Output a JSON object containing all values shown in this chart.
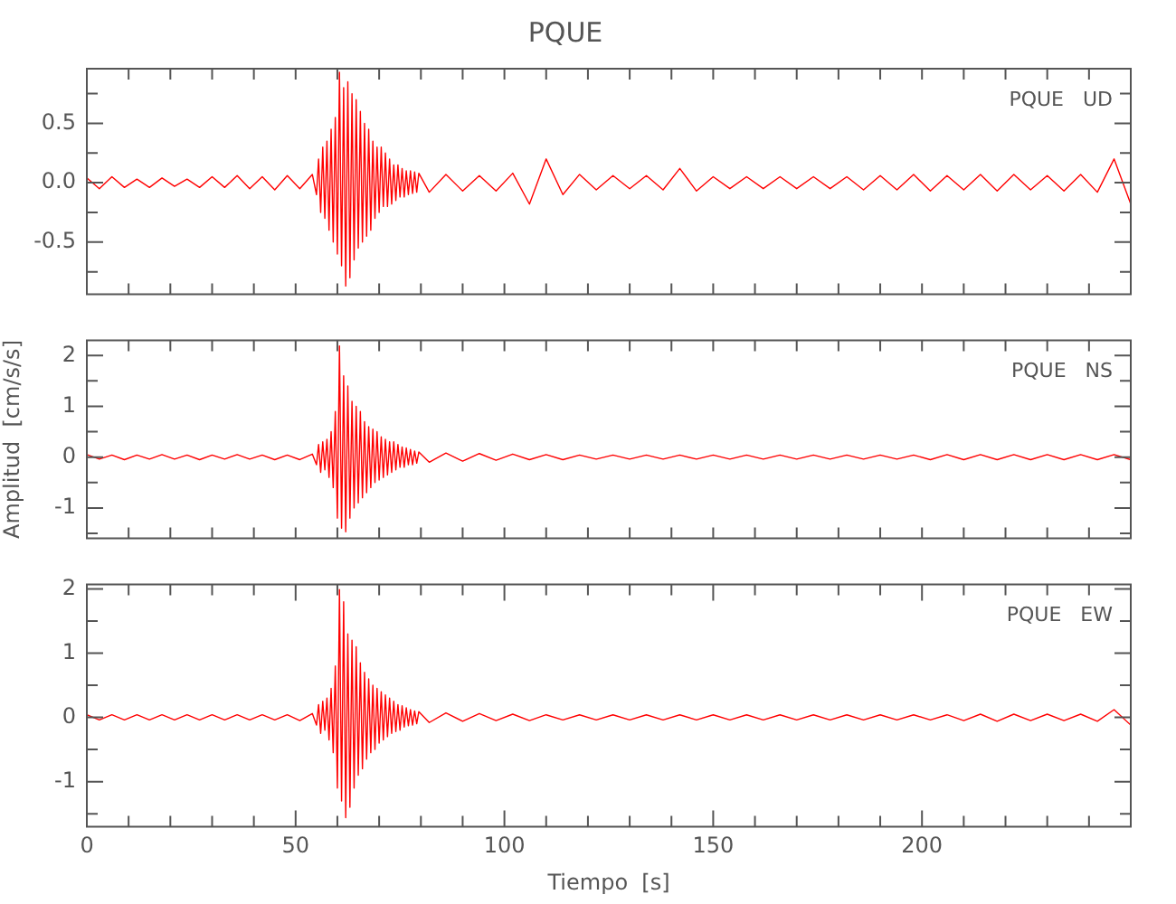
{
  "chart_data": [
    {
      "type": "line",
      "title": "PQUE",
      "annotations": [
        "PQUE   UD"
      ],
      "tick_labels": "y",
      "x": [
        0,
        3,
        6,
        9,
        12,
        15,
        18,
        21,
        24,
        27,
        30,
        33,
        36,
        39,
        42,
        45,
        48,
        51,
        54,
        55,
        55.5,
        56,
        56.5,
        57,
        57.5,
        58,
        58.5,
        59,
        59.5,
        60,
        60.5,
        61,
        61.5,
        62,
        62.5,
        63,
        63.5,
        64,
        64.5,
        65,
        65.5,
        66,
        66.5,
        67,
        67.5,
        68,
        68.5,
        69,
        69.5,
        70,
        70.5,
        71,
        71.5,
        72,
        72.5,
        73,
        73.5,
        74,
        74.5,
        75,
        75.5,
        76,
        76.5,
        77,
        77.5,
        78,
        78.5,
        79,
        79.5,
        82,
        86,
        90,
        94,
        98,
        102,
        106,
        110,
        114,
        118,
        122,
        126,
        130,
        134,
        138,
        142,
        146,
        150,
        154,
        158,
        162,
        166,
        170,
        174,
        178,
        182,
        186,
        190,
        194,
        198,
        202,
        206,
        210,
        214,
        218,
        222,
        226,
        230,
        234,
        238,
        242,
        246,
        250
      ],
      "series": [
        {
          "color": "#ff0000",
          "values": [
            0.04,
            -0.05,
            0.05,
            -0.04,
            0.03,
            -0.04,
            0.04,
            -0.03,
            0.03,
            -0.04,
            0.05,
            -0.04,
            0.06,
            -0.05,
            0.05,
            -0.06,
            0.06,
            -0.05,
            0.07,
            -0.1,
            0.2,
            -0.25,
            0.3,
            -0.3,
            0.35,
            -0.4,
            0.45,
            -0.5,
            0.55,
            -0.6,
            0.93,
            -0.7,
            0.8,
            -0.87,
            0.85,
            -0.8,
            0.75,
            -0.65,
            0.7,
            -0.55,
            0.6,
            -0.5,
            0.5,
            -0.45,
            0.45,
            -0.4,
            0.35,
            -0.3,
            0.3,
            -0.25,
            0.3,
            -0.2,
            0.25,
            -0.2,
            0.2,
            -0.18,
            0.15,
            -0.15,
            0.15,
            -0.12,
            0.12,
            -0.12,
            0.1,
            -0.1,
            0.1,
            -0.09,
            0.09,
            -0.08,
            0.08,
            -0.08,
            0.07,
            -0.07,
            0.06,
            -0.07,
            0.08,
            -0.18,
            0.2,
            -0.1,
            0.07,
            -0.06,
            0.06,
            -0.05,
            0.06,
            -0.06,
            0.12,
            -0.07,
            0.05,
            -0.05,
            0.05,
            -0.05,
            0.05,
            -0.05,
            0.05,
            -0.05,
            0.05,
            -0.06,
            0.06,
            -0.06,
            0.07,
            -0.07,
            0.06,
            -0.06,
            0.07,
            -0.07,
            0.07,
            -0.06,
            0.06,
            -0.07,
            0.07,
            -0.08,
            0.2,
            -0.18
          ]
        }
      ],
      "xlim": [
        0,
        250
      ],
      "xticks": [
        {
          "value": 0,
          "label": null
        },
        {
          "value": 10,
          "label": null
        },
        {
          "value": 20,
          "label": null
        },
        {
          "value": 30,
          "label": null
        },
        {
          "value": 40,
          "label": null
        },
        {
          "value": 50,
          "label": null
        },
        {
          "value": 60,
          "label": null
        },
        {
          "value": 70,
          "label": null
        },
        {
          "value": 80,
          "label": null
        },
        {
          "value": 90,
          "label": null
        },
        {
          "value": 100,
          "label": null
        },
        {
          "value": 110,
          "label": null
        },
        {
          "value": 120,
          "label": null
        },
        {
          "value": 130,
          "label": null
        },
        {
          "value": 140,
          "label": null
        },
        {
          "value": 150,
          "label": null
        },
        {
          "value": 160,
          "label": null
        },
        {
          "value": 170,
          "label": null
        },
        {
          "value": 180,
          "label": null
        },
        {
          "value": 190,
          "label": null
        },
        {
          "value": 200,
          "label": null
        },
        {
          "value": 210,
          "label": null
        },
        {
          "value": 220,
          "label": null
        },
        {
          "value": 230,
          "label": null
        },
        {
          "value": 240,
          "label": null
        }
      ],
      "ylim": [
        -0.94,
        0.96
      ],
      "yticks": [
        {
          "value": -0.75,
          "label": null
        },
        {
          "value": -0.5,
          "label": "-0.5"
        },
        {
          "value": -0.25,
          "label": null
        },
        {
          "value": 0,
          "label": "0.0"
        },
        {
          "value": 0.25,
          "label": null
        },
        {
          "value": 0.5,
          "label": "0.5"
        },
        {
          "value": 0.75,
          "label": null
        }
      ]
    },
    {
      "type": "line",
      "ylabel": "Amplitud  [cm/s/s]",
      "annotations": [
        "PQUE   NS"
      ],
      "tick_labels": "y",
      "x": [
        0,
        3,
        6,
        9,
        12,
        15,
        18,
        21,
        24,
        27,
        30,
        33,
        36,
        39,
        42,
        45,
        48,
        51,
        54,
        55,
        55.5,
        56,
        56.5,
        57,
        57.5,
        58,
        58.5,
        59,
        59.5,
        60,
        60.5,
        61,
        61.5,
        62,
        62.5,
        63,
        63.5,
        64,
        64.5,
        65,
        65.5,
        66,
        66.5,
        67,
        67.5,
        68,
        68.5,
        69,
        69.5,
        70,
        70.5,
        71,
        71.5,
        72,
        72.5,
        73,
        73.5,
        74,
        74.5,
        75,
        75.5,
        76,
        76.5,
        77,
        77.5,
        78,
        78.5,
        79,
        79.5,
        82,
        86,
        90,
        94,
        98,
        102,
        106,
        110,
        114,
        118,
        122,
        126,
        130,
        134,
        138,
        142,
        146,
        150,
        154,
        158,
        162,
        166,
        170,
        174,
        178,
        182,
        186,
        190,
        194,
        198,
        202,
        206,
        210,
        214,
        218,
        222,
        226,
        230,
        234,
        238,
        242,
        246,
        250
      ],
      "series": [
        {
          "color": "#ff0000",
          "values": [
            0.05,
            -0.04,
            0.04,
            -0.05,
            0.04,
            -0.04,
            0.05,
            -0.04,
            0.04,
            -0.05,
            0.04,
            -0.04,
            0.05,
            -0.04,
            0.04,
            -0.05,
            0.04,
            -0.05,
            0.06,
            -0.15,
            0.25,
            -0.3,
            0.3,
            -0.25,
            0.35,
            -0.4,
            0.5,
            -0.6,
            0.9,
            -1.2,
            2.19,
            -1.4,
            1.6,
            -1.47,
            1.4,
            -1.2,
            1.1,
            -1,
            1,
            -0.9,
            0.9,
            -0.8,
            0.7,
            -0.7,
            0.6,
            -0.6,
            0.55,
            -0.5,
            0.5,
            -0.45,
            0.4,
            -0.4,
            0.35,
            -0.35,
            0.3,
            -0.3,
            0.3,
            -0.25,
            0.25,
            -0.2,
            0.2,
            -0.2,
            0.18,
            -0.15,
            0.15,
            -0.15,
            0.12,
            -0.12,
            0.1,
            -0.1,
            0.08,
            -0.08,
            0.07,
            -0.06,
            0.06,
            -0.05,
            0.05,
            -0.05,
            0.04,
            -0.04,
            0.04,
            -0.04,
            0.04,
            -0.04,
            0.04,
            -0.04,
            0.04,
            -0.04,
            0.04,
            -0.04,
            0.04,
            -0.04,
            0.04,
            -0.04,
            0.04,
            -0.04,
            0.04,
            -0.04,
            0.04,
            -0.05,
            0.05,
            -0.05,
            0.05,
            -0.05,
            0.05,
            -0.05,
            0.05,
            -0.05,
            0.05,
            -0.05,
            0.05,
            -0.05
          ]
        }
      ],
      "xlim": [
        0,
        250
      ],
      "xticks": [
        {
          "value": 0,
          "label": null
        },
        {
          "value": 10,
          "label": null
        },
        {
          "value": 20,
          "label": null
        },
        {
          "value": 30,
          "label": null
        },
        {
          "value": 40,
          "label": null
        },
        {
          "value": 50,
          "label": null
        },
        {
          "value": 60,
          "label": null
        },
        {
          "value": 70,
          "label": null
        },
        {
          "value": 80,
          "label": null
        },
        {
          "value": 90,
          "label": null
        },
        {
          "value": 100,
          "label": null
        },
        {
          "value": 110,
          "label": null
        },
        {
          "value": 120,
          "label": null
        },
        {
          "value": 130,
          "label": null
        },
        {
          "value": 140,
          "label": null
        },
        {
          "value": 150,
          "label": null
        },
        {
          "value": 160,
          "label": null
        },
        {
          "value": 170,
          "label": null
        },
        {
          "value": 180,
          "label": null
        },
        {
          "value": 190,
          "label": null
        },
        {
          "value": 200,
          "label": null
        },
        {
          "value": 210,
          "label": null
        },
        {
          "value": 220,
          "label": null
        },
        {
          "value": 230,
          "label": null
        },
        {
          "value": 240,
          "label": null
        }
      ],
      "ylim": [
        -1.6,
        2.3
      ],
      "yticks": [
        {
          "value": -1.5,
          "label": null
        },
        {
          "value": -1,
          "label": "-1"
        },
        {
          "value": -0.5,
          "label": null
        },
        0,
        {
          "value": 0.5,
          "label": null
        },
        1,
        {
          "value": 1.5,
          "label": null
        },
        2
      ]
    },
    {
      "type": "line",
      "xlabel": "Tiempo  [s]",
      "annotations": [
        "PQUE   EW"
      ],
      "x": [
        0,
        3,
        6,
        9,
        12,
        15,
        18,
        21,
        24,
        27,
        30,
        33,
        36,
        39,
        42,
        45,
        48,
        51,
        54,
        55,
        55.5,
        56,
        56.5,
        57,
        57.5,
        58,
        58.5,
        59,
        59.5,
        60,
        60.5,
        61,
        61.5,
        62,
        62.5,
        63,
        63.5,
        64,
        64.5,
        65,
        65.5,
        66,
        66.5,
        67,
        67.5,
        68,
        68.5,
        69,
        69.5,
        70,
        70.5,
        71,
        71.5,
        72,
        72.5,
        73,
        73.5,
        74,
        74.5,
        75,
        75.5,
        76,
        76.5,
        77,
        77.5,
        78,
        78.5,
        79,
        79.5,
        82,
        86,
        90,
        94,
        98,
        102,
        106,
        110,
        114,
        118,
        122,
        126,
        130,
        134,
        138,
        142,
        146,
        150,
        154,
        158,
        162,
        166,
        170,
        174,
        178,
        182,
        186,
        190,
        194,
        198,
        202,
        206,
        210,
        214,
        218,
        222,
        226,
        230,
        234,
        238,
        242,
        246,
        250
      ],
      "series": [
        {
          "color": "#ff0000",
          "values": [
            0.04,
            -0.04,
            0.04,
            -0.04,
            0.04,
            -0.04,
            0.04,
            -0.04,
            0.04,
            -0.04,
            0.04,
            -0.04,
            0.04,
            -0.04,
            0.04,
            -0.04,
            0.04,
            -0.05,
            0.06,
            -0.12,
            0.2,
            -0.25,
            0.25,
            -0.2,
            0.3,
            -0.35,
            0.45,
            -0.55,
            0.8,
            -1.1,
            1.99,
            -1.3,
            1.8,
            -1.56,
            1.3,
            -1.4,
            1.2,
            -1.1,
            1.1,
            -0.9,
            0.85,
            -0.8,
            0.7,
            -0.65,
            0.6,
            -0.55,
            0.5,
            -0.5,
            0.45,
            -0.4,
            0.4,
            -0.35,
            0.35,
            -0.3,
            0.3,
            -0.25,
            0.25,
            -0.22,
            0.2,
            -0.2,
            0.18,
            -0.15,
            0.15,
            -0.13,
            0.12,
            -0.12,
            0.1,
            -0.1,
            0.09,
            -0.08,
            0.07,
            -0.06,
            0.06,
            -0.05,
            0.05,
            -0.05,
            0.04,
            -0.04,
            0.04,
            -0.04,
            0.04,
            -0.04,
            0.04,
            -0.04,
            0.04,
            -0.04,
            0.04,
            -0.04,
            0.04,
            -0.04,
            0.04,
            -0.04,
            0.04,
            -0.04,
            0.04,
            -0.04,
            0.04,
            -0.04,
            0.04,
            -0.04,
            0.04,
            -0.05,
            0.05,
            -0.06,
            0.05,
            -0.05,
            0.05,
            -0.05,
            0.05,
            -0.06,
            0.12,
            -0.12
          ]
        }
      ],
      "xlim": [
        0,
        250
      ],
      "xticks": [
        0,
        {
          "value": 10,
          "label": null
        },
        {
          "value": 20,
          "label": null
        },
        {
          "value": 30,
          "label": null
        },
        {
          "value": 40,
          "label": null
        },
        50,
        {
          "value": 60,
          "label": null
        },
        {
          "value": 70,
          "label": null
        },
        {
          "value": 80,
          "label": null
        },
        {
          "value": 90,
          "label": null
        },
        100,
        {
          "value": 110,
          "label": null
        },
        {
          "value": 120,
          "label": null
        },
        {
          "value": 130,
          "label": null
        },
        {
          "value": 140,
          "label": null
        },
        150,
        {
          "value": 160,
          "label": null
        },
        {
          "value": 170,
          "label": null
        },
        {
          "value": 180,
          "label": null
        },
        {
          "value": 190,
          "label": null
        },
        200,
        {
          "value": 210,
          "label": null
        },
        {
          "value": 220,
          "label": null
        },
        {
          "value": 230,
          "label": null
        },
        {
          "value": 240,
          "label": null
        }
      ],
      "ylim": [
        -1.7,
        2.07
      ],
      "yticks": [
        {
          "value": -1.5,
          "label": null
        },
        {
          "value": -1,
          "label": "-1"
        },
        {
          "value": -0.5,
          "label": null
        },
        0,
        {
          "value": 0.5,
          "label": null
        },
        1,
        {
          "value": 1.5,
          "label": null
        },
        2
      ]
    }
  ]
}
